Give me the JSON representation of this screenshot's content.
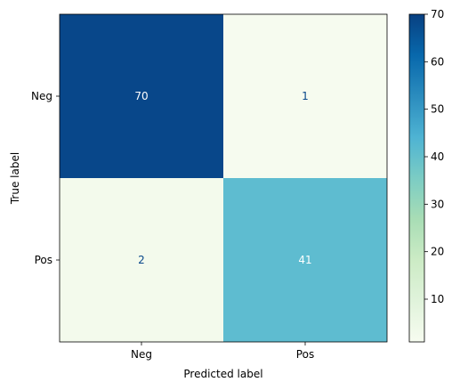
{
  "chart_data": {
    "type": "heatmap",
    "title": "",
    "xlabel": "Predicted label",
    "ylabel": "True label",
    "x_categories": [
      "Neg",
      "Pos"
    ],
    "y_categories": [
      "Neg",
      "Pos"
    ],
    "values": [
      [
        70,
        1
      ],
      [
        2,
        41
      ]
    ],
    "value_labels": [
      [
        "70",
        "1"
      ],
      [
        "2",
        "41"
      ]
    ],
    "colorscale": "GnBu",
    "colorbar": {
      "min": 1,
      "max": 70,
      "ticks": [
        10,
        20,
        30,
        40,
        50,
        60,
        70
      ],
      "tick_labels": [
        "10",
        "20",
        "30",
        "40",
        "50",
        "60",
        "70"
      ]
    },
    "cell_colors": [
      [
        "#08478a",
        "#f6fbef"
      ],
      [
        "#f3faec",
        "#5ebcd0"
      ]
    ],
    "text_colors": [
      [
        "#ffffff",
        "#08478a"
      ],
      [
        "#08478a",
        "#ffffff"
      ]
    ],
    "grid": false
  }
}
